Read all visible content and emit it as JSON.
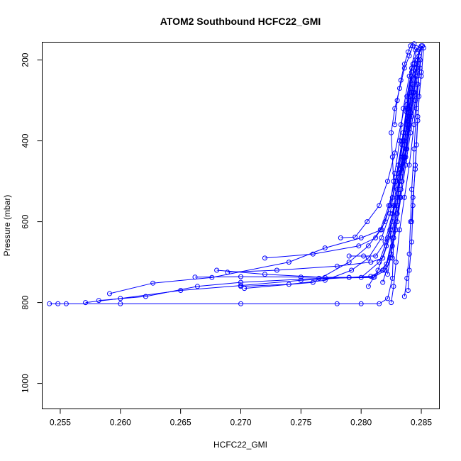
{
  "chart_data": {
    "type": "line",
    "title": "ATOM2 Southbound HCFC22_GMI",
    "xlabel": "HCFC22_GMI",
    "ylabel": "Pressure (mbar)",
    "xlim": [
      0.2535,
      0.2865
    ],
    "ylim": [
      1063,
      156
    ],
    "y_reversed": true,
    "xticks": [
      0.255,
      0.26,
      0.265,
      0.27,
      0.275,
      0.28,
      0.285
    ],
    "xtick_labels": [
      "0.255",
      "0.260",
      "0.265",
      "0.270",
      "0.275",
      "0.280",
      "0.285"
    ],
    "yticks": [
      200,
      400,
      600,
      800,
      1000
    ],
    "ytick_labels": [
      "200",
      "400",
      "600",
      "800",
      "1000"
    ],
    "grid": false,
    "marker": "open-circle",
    "color": "#0000ff",
    "series": [
      {
        "x": [
          0.2541,
          0.2548,
          0.2555,
          0.26,
          0.27,
          0.278,
          0.28,
          0.2815,
          0.2822,
          0.2826,
          0.2827,
          0.283,
          0.2836,
          0.284,
          0.2843,
          0.2846,
          0.2848,
          0.285
        ],
        "y": [
          803,
          803,
          803,
          803,
          803,
          803,
          803,
          803,
          790,
          740,
          640,
          540,
          440,
          340,
          280,
          220,
          190,
          165
        ]
      },
      {
        "x": [
          0.2571,
          0.26,
          0.265,
          0.27,
          0.275,
          0.279,
          0.2808,
          0.2818,
          0.2825,
          0.283,
          0.2833,
          0.2837,
          0.284,
          0.2843,
          0.2846,
          0.2848
        ],
        "y": [
          800,
          790,
          770,
          758,
          745,
          738,
          735,
          720,
          680,
          600,
          520,
          440,
          360,
          290,
          230,
          175
        ]
      },
      {
        "x": [
          0.2582,
          0.2621,
          0.2664,
          0.27,
          0.2765,
          0.281,
          0.282,
          0.2827,
          0.2832,
          0.2836,
          0.284,
          0.2844,
          0.2847
        ],
        "y": [
          795,
          785,
          760,
          750,
          740,
          738,
          720,
          640,
          540,
          450,
          370,
          280,
          200
        ]
      },
      {
        "x": [
          0.2591,
          0.2627,
          0.2676,
          0.274,
          0.277,
          0.28,
          0.2817,
          0.2824,
          0.2828,
          0.2832,
          0.2835,
          0.284,
          0.2845
        ],
        "y": [
          778,
          752,
          738,
          700,
          665,
          640,
          620,
          560,
          480,
          400,
          320,
          240,
          175
        ]
      },
      {
        "x": [
          0.2662,
          0.27,
          0.275,
          0.279,
          0.2811,
          0.2821,
          0.2826,
          0.283,
          0.2833,
          0.2836,
          0.2839,
          0.2842
        ],
        "y": [
          737,
          736,
          737,
          738,
          737,
          705,
          640,
          560,
          480,
          400,
          320,
          240
        ]
      },
      {
        "x": [
          0.268,
          0.272,
          0.277,
          0.28,
          0.2815,
          0.2822,
          0.2828,
          0.2833,
          0.2837,
          0.2841,
          0.2845
        ],
        "y": [
          720,
          730,
          738,
          738,
          700,
          640,
          560,
          470,
          380,
          290,
          200
        ]
      },
      {
        "x": [
          0.2689,
          0.273,
          0.278,
          0.2808,
          0.2818,
          0.2826,
          0.2831,
          0.2835,
          0.2839,
          0.2843
        ],
        "y": [
          725,
          720,
          710,
          700,
          690,
          620,
          530,
          440,
          350,
          260
        ]
      },
      {
        "x": [
          0.27,
          0.274,
          0.277,
          0.2792,
          0.2806,
          0.2817,
          0.2824,
          0.2829,
          0.2834,
          0.2838,
          0.2842
        ],
        "y": [
          760,
          755,
          745,
          720,
          690,
          640,
          580,
          500,
          410,
          320,
          230
        ]
      },
      {
        "x": [
          0.2703,
          0.276,
          0.279,
          0.2806,
          0.2816,
          0.2823,
          0.2829,
          0.2834,
          0.2838,
          0.2842
        ],
        "y": [
          765,
          750,
          700,
          660,
          620,
          560,
          490,
          400,
          310,
          220
        ]
      },
      {
        "x": [
          0.272,
          0.276,
          0.2798,
          0.2812,
          0.282,
          0.2826,
          0.2831,
          0.2835,
          0.284
        ],
        "y": [
          690,
          680,
          660,
          640,
          600,
          540,
          460,
          380,
          290
        ]
      },
      {
        "x": [
          0.2783,
          0.2795,
          0.2805,
          0.2815,
          0.2822,
          0.2828,
          0.2833,
          0.2838,
          0.2843
        ],
        "y": [
          640,
          638,
          600,
          560,
          500,
          430,
          360,
          290,
          210
        ]
      },
      {
        "x": [
          0.279,
          0.2802,
          0.2812,
          0.282,
          0.2826,
          0.2832,
          0.2837,
          0.2841,
          0.2846
        ],
        "y": [
          685,
          685,
          685,
          650,
          580,
          500,
          420,
          330,
          240
        ]
      },
      {
        "x": [
          0.2806,
          0.2814,
          0.2821,
          0.2826,
          0.283,
          0.2834,
          0.2838,
          0.2842,
          0.2846,
          0.2849
        ],
        "y": [
          760,
          720,
          660,
          600,
          520,
          440,
          360,
          280,
          210,
          170
        ]
      },
      {
        "x": [
          0.2818,
          0.2824,
          0.2829,
          0.2833,
          0.2837,
          0.2841,
          0.2845,
          0.2849,
          0.2851
        ],
        "y": [
          750,
          690,
          620,
          540,
          460,
          380,
          300,
          220,
          165
        ]
      },
      {
        "x": [
          0.2822,
          0.2826,
          0.283,
          0.2834,
          0.2838,
          0.2842,
          0.2846,
          0.2848
        ],
        "y": [
          730,
          660,
          580,
          500,
          420,
          340,
          260,
          190
        ]
      },
      {
        "x": [
          0.2825,
          0.2827,
          0.2829,
          0.2832,
          0.2836,
          0.284,
          0.2844,
          0.2847
        ],
        "y": [
          800,
          760,
          700,
          620,
          540,
          460,
          360,
          260
        ]
      },
      {
        "x": [
          0.2826,
          0.2824,
          0.2827,
          0.2831,
          0.2835,
          0.2838,
          0.2841,
          0.2844,
          0.2846
        ],
        "y": [
          690,
          620,
          560,
          480,
          400,
          330,
          270,
          210,
          170
        ]
      },
      {
        "x": [
          0.2827,
          0.2826,
          0.2825,
          0.2828,
          0.2832,
          0.2836,
          0.284,
          0.2843
        ],
        "y": [
          500,
          440,
          380,
          320,
          270,
          220,
          190,
          165
        ]
      },
      {
        "x": [
          0.2836,
          0.2838,
          0.284,
          0.2841,
          0.2842,
          0.2844,
          0.2846,
          0.2849
        ],
        "y": [
          785,
          740,
          680,
          600,
          520,
          420,
          320,
          200
        ]
      },
      {
        "x": [
          0.2839,
          0.284,
          0.2842,
          0.2843,
          0.2845,
          0.2847,
          0.285
        ],
        "y": [
          770,
          720,
          650,
          560,
          460,
          340,
          230
        ]
      },
      {
        "x": [
          0.2828,
          0.283,
          0.2833,
          0.2836,
          0.2839,
          0.2841,
          0.2844
        ],
        "y": [
          360,
          300,
          250,
          210,
          180,
          165,
          160
        ]
      },
      {
        "x": [
          0.2842,
          0.2843,
          0.2845,
          0.2846,
          0.2847,
          0.2848,
          0.285,
          0.2852
        ],
        "y": [
          600,
          540,
          470,
          410,
          350,
          290,
          240,
          170
        ]
      }
    ]
  }
}
